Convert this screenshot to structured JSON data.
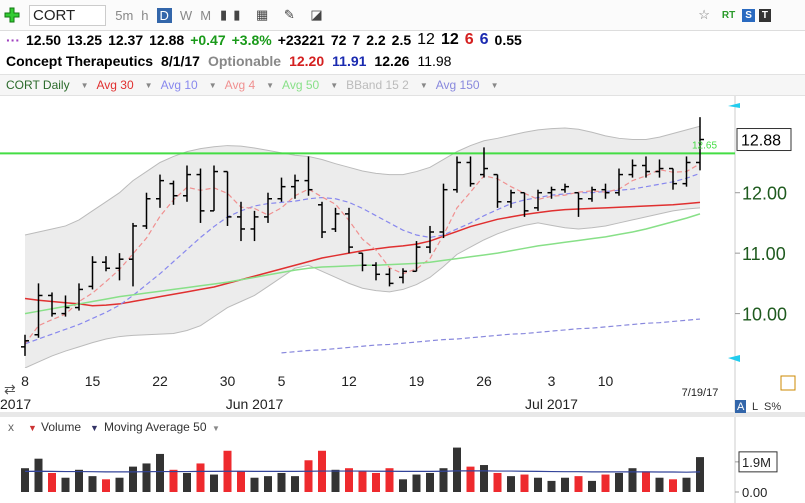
{
  "toolbar": {
    "symbol": "CORT",
    "timeframes": [
      "5m",
      "h",
      "D",
      "W",
      "M"
    ],
    "active": "D",
    "badges": [
      "RT",
      "S",
      "T"
    ]
  },
  "quote": {
    "items": [
      {
        "text": "12.50",
        "color": "#000",
        "bold": true
      },
      {
        "text": "13.25",
        "color": "#000",
        "bold": true
      },
      {
        "text": "12.37",
        "color": "#000",
        "bold": true
      },
      {
        "text": "12.88",
        "color": "#000",
        "bold": true
      },
      {
        "text": "+0.47",
        "color": "#1a9a1a",
        "bold": true
      },
      {
        "text": "+3.8%",
        "color": "#1a9a1a",
        "bold": true
      },
      {
        "text": "+23221",
        "color": "#000",
        "bold": true
      },
      {
        "text": "72",
        "color": "#000",
        "bold": true
      },
      {
        "text": "7",
        "color": "#000",
        "bold": true
      },
      {
        "text": "2.2",
        "color": "#000",
        "bold": true
      },
      {
        "text": "2.5",
        "color": "#000",
        "bold": true
      },
      {
        "text": "12",
        "color": "#000",
        "bold": false
      },
      {
        "text": "12",
        "color": "#000",
        "bold": true
      },
      {
        "text": "6",
        "color": "#d42020",
        "bold": true
      },
      {
        "text": "6",
        "color": "#1a2ab0",
        "bold": true
      },
      {
        "text": "0.55",
        "color": "#000",
        "bold": true
      }
    ]
  },
  "info": {
    "name": "Concept Therapeutics",
    "date": "8/1/17",
    "optionable": "Optionable",
    "values": [
      {
        "text": "12.20",
        "color": "#d42020"
      },
      {
        "text": "11.91",
        "color": "#1a2ab0"
      },
      {
        "text": "12.26",
        "color": "#000"
      },
      {
        "text": "11.98",
        "color": "#000"
      }
    ]
  },
  "scale_buttons": [
    "A",
    "L",
    "S%"
  ],
  "chart_data": [
    {
      "type": "ohlc",
      "title": "CORT Daily",
      "color": "#000",
      "categories": [
        "8",
        null,
        null,
        null,
        null,
        "15",
        null,
        null,
        null,
        null,
        "22",
        null,
        null,
        null,
        null,
        "30",
        null,
        null,
        null,
        "5",
        null,
        null,
        null,
        null,
        "12",
        null,
        null,
        null,
        null,
        "19",
        null,
        null,
        null,
        null,
        "26",
        null,
        null,
        null,
        null,
        "3",
        null,
        null,
        null,
        "10",
        null,
        null,
        null,
        null,
        null,
        null,
        "7/19/17"
      ],
      "month_categories": [
        "2017",
        null,
        null,
        null,
        null,
        null,
        null,
        null,
        null,
        null,
        null,
        null,
        null,
        null,
        null,
        null,
        null,
        "Jun 2017",
        null,
        null,
        null,
        null,
        null,
        null,
        null,
        null,
        null,
        null,
        null,
        null,
        null,
        null,
        null,
        null,
        null,
        null,
        null,
        null,
        null,
        "Jul 2017",
        null,
        null,
        null,
        null,
        null,
        null,
        null,
        null,
        null,
        null,
        null
      ],
      "open": [
        9.45,
        9.65,
        10.3,
        10.0,
        10.1,
        10.45,
        10.85,
        10.75,
        10.9,
        11.45,
        11.9,
        12.15,
        11.95,
        12.3,
        11.7,
        12.35,
        11.6,
        11.4,
        11.6,
        11.9,
        12.1,
        12.2,
        11.8,
        11.4,
        11.65,
        11.0,
        10.8,
        10.65,
        10.6,
        10.7,
        11.1,
        11.35,
        12.05,
        12.5,
        12.3,
        12.3,
        11.85,
        12.0,
        11.75,
        12.0,
        12.05,
        12.0,
        11.9,
        12.05,
        12.0,
        12.3,
        12.45,
        12.35,
        12.4,
        12.15,
        12.5
      ],
      "high": [
        9.65,
        10.5,
        10.35,
        10.3,
        10.5,
        10.95,
        10.95,
        11.0,
        11.5,
        12.0,
        12.3,
        12.2,
        12.45,
        12.4,
        12.45,
        12.35,
        11.85,
        11.7,
        12.0,
        12.25,
        12.3,
        12.6,
        11.85,
        11.75,
        11.75,
        11.0,
        10.85,
        10.75,
        10.75,
        11.2,
        11.45,
        12.15,
        12.6,
        12.6,
        12.75,
        12.3,
        12.05,
        12.0,
        12.05,
        12.1,
        12.15,
        12.0,
        12.1,
        12.15,
        12.4,
        12.55,
        12.6,
        12.55,
        12.4,
        12.6,
        13.25
      ],
      "low": [
        9.3,
        9.6,
        9.95,
        9.95,
        10.05,
        10.4,
        10.7,
        10.55,
        10.45,
        11.4,
        11.75,
        11.8,
        11.85,
        11.5,
        11.7,
        11.45,
        11.2,
        11.2,
        11.5,
        11.85,
        11.9,
        11.95,
        11.25,
        11.35,
        11.0,
        10.7,
        10.55,
        10.45,
        10.5,
        10.7,
        11.0,
        11.25,
        12.0,
        12.1,
        12.25,
        11.75,
        11.75,
        11.6,
        11.7,
        11.9,
        12.0,
        11.6,
        11.85,
        11.9,
        11.95,
        12.25,
        12.25,
        12.25,
        12.05,
        12.1,
        12.37
      ],
      "close": [
        9.55,
        10.3,
        10.0,
        10.1,
        10.4,
        10.85,
        10.75,
        10.9,
        11.45,
        11.9,
        12.2,
        11.95,
        12.3,
        11.7,
        12.35,
        11.6,
        11.4,
        11.6,
        11.9,
        12.1,
        12.2,
        12.05,
        11.35,
        11.65,
        11.1,
        10.8,
        10.65,
        10.5,
        10.7,
        11.1,
        11.35,
        12.05,
        12.5,
        12.15,
        12.4,
        11.85,
        12.0,
        11.7,
        12.0,
        12.05,
        12.1,
        11.9,
        12.05,
        12.0,
        12.3,
        12.45,
        12.35,
        12.4,
        12.15,
        12.5,
        12.88
      ],
      "overlays": [
        {
          "name": "Avg 30",
          "color": "#e03030",
          "dash": false,
          "values": [
            10.25,
            10.22,
            10.2,
            10.18,
            10.16,
            10.13,
            10.14,
            10.16,
            10.2,
            10.24,
            10.28,
            10.32,
            10.36,
            10.4,
            10.44,
            10.5,
            10.56,
            10.62,
            10.68,
            10.74,
            10.8,
            10.86,
            10.92,
            10.96,
            11.0,
            11.04,
            11.07,
            11.1,
            11.12,
            11.15,
            11.2,
            11.28,
            11.36,
            11.44,
            11.5,
            11.56,
            11.6,
            11.64,
            11.67,
            11.7,
            11.72,
            11.73,
            11.74,
            11.75,
            11.76,
            11.77,
            11.78,
            11.79,
            11.8,
            11.82,
            11.84
          ]
        },
        {
          "name": "Avg 10",
          "color": "#8888ee",
          "dash": true,
          "values": [
            9.5,
            9.58,
            9.66,
            9.74,
            9.82,
            9.92,
            10.02,
            10.14,
            10.3,
            10.48,
            10.66,
            10.86,
            11.06,
            11.26,
            11.44,
            11.6,
            11.7,
            11.78,
            11.82,
            11.84,
            11.86,
            11.9,
            11.92,
            11.9,
            11.84,
            11.74,
            11.62,
            11.5,
            11.38,
            11.3,
            11.26,
            11.3,
            11.4,
            11.5,
            11.62,
            11.72,
            11.82,
            11.88,
            11.92,
            11.96,
            11.98,
            12.0,
            12.0,
            12.02,
            12.04,
            12.06,
            12.1,
            12.14,
            12.18,
            12.24,
            12.32
          ]
        },
        {
          "name": "Avg 4",
          "color": "#f09090",
          "dash": true,
          "values": [
            9.5,
            9.8,
            9.9,
            9.99,
            10.2,
            10.34,
            10.53,
            10.73,
            10.99,
            11.25,
            11.61,
            11.88,
            12.09,
            12.04,
            12.08,
            11.99,
            11.76,
            11.74,
            11.63,
            11.75,
            11.95,
            12.06,
            11.93,
            11.81,
            11.54,
            11.23,
            11.05,
            10.76,
            10.66,
            10.74,
            10.91,
            11.3,
            11.75,
            12.01,
            12.28,
            12.23,
            12.1,
            11.99,
            11.89,
            11.94,
            11.96,
            12.01,
            12.03,
            12.01,
            12.06,
            12.2,
            12.28,
            12.38,
            12.34,
            12.35,
            12.48
          ]
        },
        {
          "name": "Avg 50",
          "color": "#88e088",
          "dash": false,
          "values": [
            10.0,
            10.04,
            10.08,
            10.12,
            10.16,
            10.2,
            10.24,
            10.28,
            10.31,
            10.34,
            10.37,
            10.4,
            10.43,
            10.46,
            10.49,
            10.52,
            10.56,
            10.6,
            10.64,
            10.68,
            10.72,
            10.75,
            10.77,
            10.78,
            10.79,
            10.8,
            10.8,
            10.81,
            10.82,
            10.83,
            10.85,
            10.88,
            10.91,
            10.94,
            10.97,
            11.0,
            11.04,
            11.08,
            11.12,
            11.15,
            11.18,
            11.21,
            11.24,
            11.27,
            11.31,
            11.35,
            11.4,
            11.46,
            11.52,
            11.58,
            11.65
          ]
        },
        {
          "name": "Avg 150",
          "color": "#8888dd",
          "dash": true,
          "values": [
            null,
            null,
            null,
            null,
            null,
            null,
            null,
            null,
            null,
            null,
            null,
            null,
            null,
            null,
            null,
            null,
            null,
            null,
            null,
            9.35,
            9.37,
            9.39,
            9.4,
            9.42,
            9.44,
            9.46,
            9.48,
            9.49,
            9.51,
            9.53,
            9.55,
            9.57,
            9.58,
            9.6,
            9.62,
            9.64,
            9.66,
            9.67,
            9.69,
            9.71,
            9.73,
            9.75,
            9.76,
            9.78,
            9.8,
            9.82,
            9.84,
            9.85,
            9.87,
            9.89,
            9.91
          ]
        }
      ],
      "bband": {
        "name": "BBand 15 2",
        "color": "#bbbbbb",
        "fill": "#ececec",
        "upper": [
          11.3,
          11.35,
          11.4,
          11.45,
          11.55,
          11.7,
          11.85,
          12.0,
          12.2,
          12.35,
          12.5,
          12.6,
          12.68,
          12.73,
          12.76,
          12.78,
          12.77,
          12.74,
          12.7,
          12.66,
          12.62,
          12.6,
          12.55,
          12.48,
          12.42,
          12.36,
          12.32,
          12.3,
          12.3,
          12.35,
          12.42,
          12.55,
          12.68,
          12.78,
          12.86,
          12.9,
          12.95,
          13.0,
          13.04,
          13.06,
          13.07,
          13.05,
          13.0,
          12.94,
          12.9,
          12.88,
          12.88,
          12.92,
          12.98,
          13.04,
          13.1
        ],
        "lower": [
          9.1,
          9.2,
          9.3,
          9.38,
          9.45,
          9.52,
          9.58,
          9.62,
          9.64,
          9.65,
          9.66,
          9.67,
          9.72,
          9.8,
          9.95,
          10.1,
          10.2,
          10.3,
          10.45,
          10.6,
          10.75,
          10.8,
          10.7,
          10.6,
          10.5,
          10.42,
          10.38,
          10.36,
          10.4,
          10.48,
          10.6,
          10.78,
          10.98,
          11.1,
          11.22,
          11.32,
          11.4,
          11.46,
          11.5,
          11.46,
          11.42,
          11.4,
          11.42,
          11.45,
          11.5,
          11.55,
          11.6,
          11.65,
          11.7,
          11.73,
          11.75
        ]
      },
      "hline": {
        "value": 12.65,
        "color": "#44dd44"
      },
      "ylim": [
        9.1,
        13.6
      ],
      "yticks": [
        {
          "value": 10,
          "label": "10.00"
        },
        {
          "value": 11,
          "label": "11.00"
        },
        {
          "value": 12,
          "label": "12.00"
        }
      ]
    },
    {
      "type": "bar",
      "title": "Volume",
      "up_color": "#333333",
      "down_color": "#ee2a2e",
      "values": [
        1500000,
        2100000,
        1200000,
        900000,
        1400000,
        1000000,
        800000,
        900000,
        1600000,
        1800000,
        2400000,
        1400000,
        1200000,
        1800000,
        1100000,
        2600000,
        1300000,
        900000,
        1000000,
        1200000,
        1000000,
        2000000,
        2600000,
        1400000,
        1500000,
        1300000,
        1200000,
        1500000,
        800000,
        1100000,
        1200000,
        1500000,
        2800000,
        1600000,
        1700000,
        1200000,
        1000000,
        1100000,
        900000,
        700000,
        900000,
        1000000,
        700000,
        1100000,
        1200000,
        1500000,
        1300000,
        900000,
        800000,
        900000,
        2200000
      ],
      "ma": {
        "name": "Moving Average 50",
        "color": "#33449a",
        "values": [
          1300000,
          1310000,
          1300000,
          1290000,
          1290000,
          1280000,
          1270000,
          1270000,
          1270000,
          1280000,
          1290000,
          1290000,
          1290000,
          1300000,
          1300000,
          1310000,
          1310000,
          1300000,
          1300000,
          1300000,
          1300000,
          1310000,
          1320000,
          1320000,
          1320000,
          1320000,
          1310000,
          1310000,
          1300000,
          1300000,
          1300000,
          1310000,
          1330000,
          1330000,
          1330000,
          1320000,
          1320000,
          1310000,
          1300000,
          1290000,
          1280000,
          1280000,
          1270000,
          1270000,
          1270000,
          1270000,
          1270000,
          1260000,
          1260000,
          1250000,
          1270000
        ]
      },
      "ylim": [
        0,
        2900000
      ],
      "yticks": [
        {
          "value": 0,
          "label": "0.00"
        },
        {
          "value": 1900000,
          "label": "1.9M"
        }
      ]
    }
  ]
}
